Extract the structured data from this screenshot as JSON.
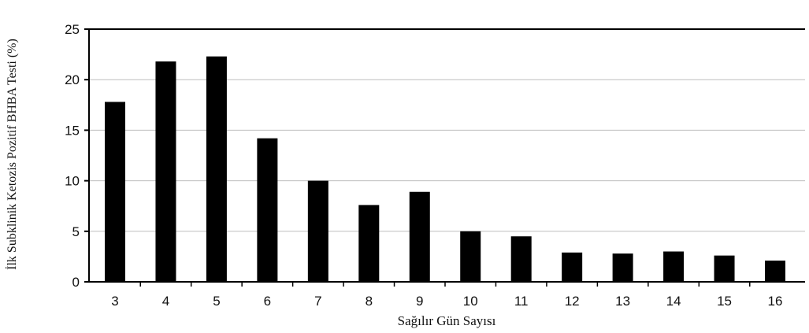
{
  "chart_data": {
    "type": "bar",
    "title": "",
    "xlabel": "Sağılır Gün Sayısı",
    "ylabel": "İlk Subklinik Ketozis Pozitif BHBA Testi (%)",
    "categories": [
      "3",
      "4",
      "5",
      "6",
      "7",
      "8",
      "9",
      "10",
      "11",
      "12",
      "13",
      "14",
      "15",
      "16"
    ],
    "values": [
      17.8,
      21.8,
      22.3,
      14.2,
      10.0,
      7.6,
      8.9,
      5.0,
      4.5,
      2.9,
      2.8,
      3.0,
      2.6,
      2.1
    ],
    "ylim": [
      0,
      25
    ],
    "yticks": [
      "0",
      "5",
      "10",
      "15",
      "20",
      "25"
    ],
    "grid": true,
    "legend": "none",
    "colors": {
      "bar": "#000000",
      "grid": "#bdbdbd",
      "axis": "#000000"
    }
  }
}
